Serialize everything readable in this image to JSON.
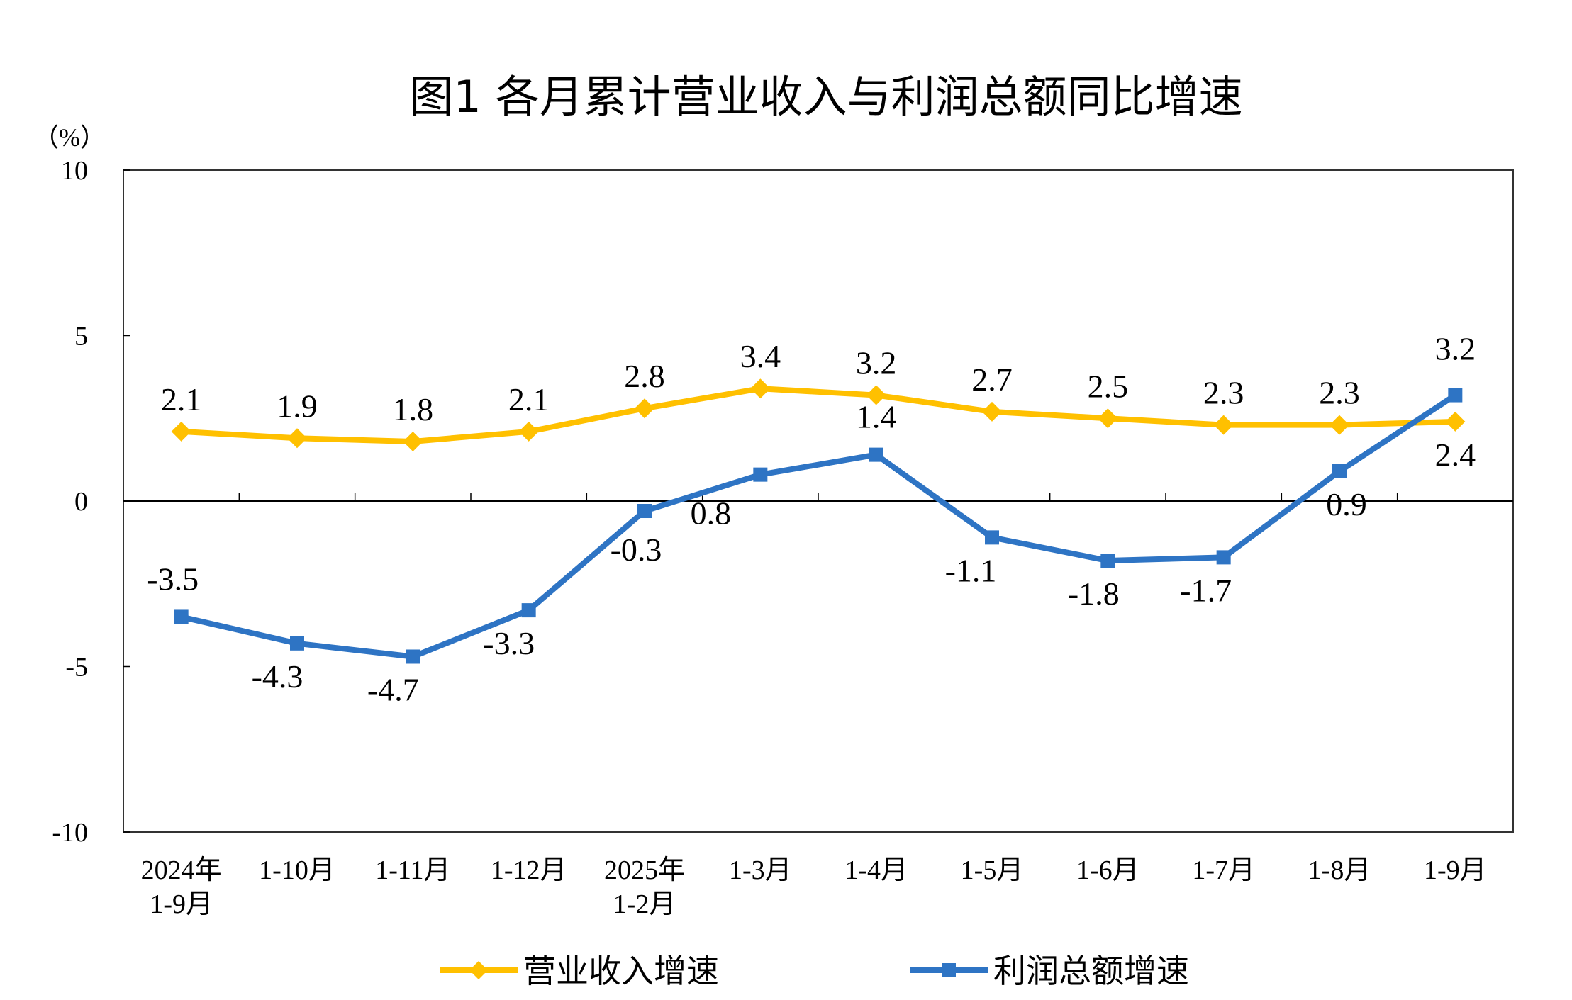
{
  "chart_data": {
    "type": "line",
    "title": "图1  各月累计营业收入与利润总额同比增速",
    "ylabel": "（%）",
    "ylim": [
      -10,
      10
    ],
    "yticks": [
      "10",
      "5",
      "0",
      "-5",
      "-10"
    ],
    "ytick_values": [
      10,
      5,
      0,
      -5,
      -10
    ],
    "categories": [
      [
        "2024年",
        "1-9月"
      ],
      [
        "1-10月"
      ],
      [
        "1-11月"
      ],
      [
        "1-12月"
      ],
      [
        "2025年",
        "1-2月"
      ],
      [
        "1-3月"
      ],
      [
        "1-4月"
      ],
      [
        "1-5月"
      ],
      [
        "1-6月"
      ],
      [
        "1-7月"
      ],
      [
        "1-8月"
      ],
      [
        "1-9月"
      ]
    ],
    "legend_placement": "bottom",
    "grid": false,
    "series": [
      {
        "name": "营业收入增速",
        "color": "#FFC000",
        "marker": "diamond",
        "values": [
          2.1,
          1.9,
          1.8,
          2.1,
          2.8,
          3.4,
          3.2,
          2.7,
          2.5,
          2.3,
          2.3,
          2.4
        ],
        "labels": [
          "2.1",
          "1.9",
          "1.8",
          "2.1",
          "2.8",
          "3.4",
          "3.2",
          "2.7",
          "2.5",
          "2.3",
          "2.3",
          "2.4"
        ]
      },
      {
        "name": "利润总额增速",
        "color": "#2E74C4",
        "marker": "square",
        "values": [
          -3.5,
          -4.3,
          -4.7,
          -3.3,
          -0.3,
          0.8,
          1.4,
          -1.1,
          -1.8,
          -1.7,
          0.9,
          3.2
        ],
        "labels": [
          "-3.5",
          "-4.3",
          "-4.7",
          "-3.3",
          "-0.3",
          "0.8",
          "1.4",
          "-1.1",
          "-1.8",
          "-1.7",
          "0.9",
          "3.2"
        ]
      }
    ]
  }
}
